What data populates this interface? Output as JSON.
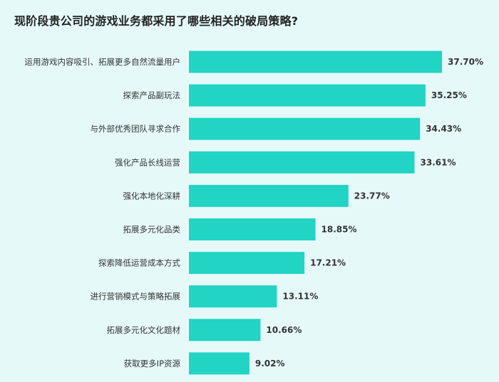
{
  "chart_data": {
    "type": "bar",
    "orientation": "horizontal",
    "title": "现阶段贵公司的游戏业务都采用了哪些相关的破局策略?",
    "xlabel": "",
    "ylabel": "",
    "xlim": [
      0,
      40
    ],
    "grid": false,
    "legend": "none",
    "bar_color": "#21d4c4",
    "categories": [
      "运用游戏内容吸引、拓展更多自然流量用户",
      "探索产品副玩法",
      "与外部优秀团队寻求合作",
      "强化产品长线运营",
      "强化本地化深耕",
      "拓展多元化品类",
      "探索降低运营成本方式",
      "进行营销模式与策略拓展",
      "拓展多元化文化题材",
      "获取更多IP资源"
    ],
    "values": [
      37.7,
      35.25,
      34.43,
      33.61,
      23.77,
      18.85,
      17.21,
      13.11,
      10.66,
      9.02
    ],
    "value_labels": [
      "37.70%",
      "35.25%",
      "34.43%",
      "33.61%",
      "23.77%",
      "18.85%",
      "17.21%",
      "13.11%",
      "10.66%",
      "9.02%"
    ]
  }
}
